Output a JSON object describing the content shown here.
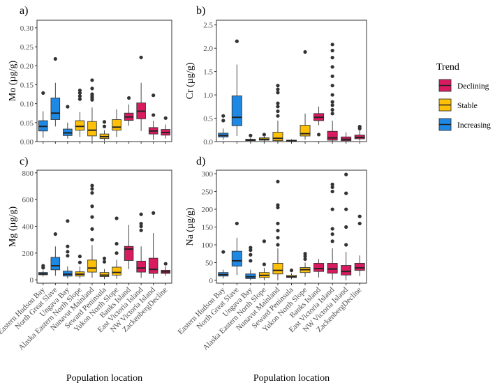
{
  "chart_data": {
    "type": "box",
    "xlabel": "Population location",
    "categories": [
      "Eastern Hudson Bay",
      "North Great Slave",
      "Ungava Bay",
      "Alaska Eastern North Slope",
      "Nunavut Mainland",
      "Seward Peninsula",
      "Yukon North Slope",
      "Banks Island",
      "East Victoria Island",
      "NW Victoria Island",
      "ZackenbergDecline"
    ],
    "trend_of_category": [
      "Increasing",
      "Increasing",
      "Increasing",
      "Stable",
      "Stable",
      "Stable",
      "Stable",
      "Declining",
      "Declining",
      "Declining",
      "Declining"
    ],
    "legend": {
      "title": "Trend",
      "entries": [
        {
          "name": "Declining",
          "color": "#D81B60"
        },
        {
          "name": "Stable",
          "color": "#FFC107"
        },
        {
          "name": "Increasing",
          "color": "#1E88E5"
        }
      ]
    },
    "panels": [
      {
        "label": "a)",
        "ylabel": "Mo (µg/g)",
        "ylim": [
          0,
          0.32
        ],
        "yticks": [
          0.0,
          0.05,
          0.1,
          0.15,
          0.2,
          0.25,
          0.3
        ],
        "ytick_labels": [
          "0.00",
          "0.05",
          "0.10",
          "0.15",
          "0.20",
          "0.25",
          "0.30"
        ],
        "boxes": [
          {
            "q1": 0.028,
            "med": 0.04,
            "q3": 0.055,
            "lo": 0.01,
            "hi": 0.08,
            "out": [
              0.128
            ]
          },
          {
            "q1": 0.058,
            "med": 0.075,
            "q3": 0.115,
            "lo": 0.04,
            "hi": 0.155,
            "out": [
              0.218
            ]
          },
          {
            "q1": 0.016,
            "med": 0.023,
            "q3": 0.033,
            "lo": 0.008,
            "hi": 0.05,
            "out": [
              0.092
            ]
          },
          {
            "q1": 0.03,
            "med": 0.04,
            "q3": 0.055,
            "lo": 0.012,
            "hi": 0.078,
            "out": [
              0.112,
              0.12,
              0.128,
              0.135
            ]
          },
          {
            "q1": 0.015,
            "med": 0.03,
            "q3": 0.053,
            "lo": 0.002,
            "hi": 0.09,
            "out": [
              0.11,
              0.115,
              0.12,
              0.125,
              0.14,
              0.162
            ]
          },
          {
            "q1": 0.008,
            "med": 0.013,
            "q3": 0.02,
            "lo": 0.002,
            "hi": 0.03,
            "out": [
              0.04,
              0.052
            ]
          },
          {
            "q1": 0.03,
            "med": 0.038,
            "q3": 0.058,
            "lo": 0.012,
            "hi": 0.085,
            "out": []
          },
          {
            "q1": 0.056,
            "med": 0.065,
            "q3": 0.075,
            "lo": 0.042,
            "hi": 0.098,
            "out": [
              0.115
            ]
          },
          {
            "q1": 0.06,
            "med": 0.08,
            "q3": 0.102,
            "lo": 0.028,
            "hi": 0.155,
            "out": [
              0.222
            ]
          },
          {
            "q1": 0.02,
            "med": 0.028,
            "q3": 0.037,
            "lo": 0.005,
            "hi": 0.055,
            "out": [
              0.07,
              0.122
            ]
          },
          {
            "q1": 0.017,
            "med": 0.024,
            "q3": 0.032,
            "lo": 0.008,
            "hi": 0.045,
            "out": [
              0.062
            ]
          }
        ]
      },
      {
        "label": "b)",
        "ylabel": "Cr (µg/g)",
        "ylim": [
          0,
          2.6
        ],
        "yticks": [
          0.0,
          0.5,
          1.0,
          1.5,
          2.0,
          2.5
        ],
        "ytick_labels": [
          "0.0",
          "0.5",
          "1.0",
          "1.5",
          "2.0",
          "2.5"
        ],
        "boxes": [
          {
            "q1": 0.1,
            "med": 0.13,
            "q3": 0.18,
            "lo": 0.04,
            "hi": 0.28,
            "out": [
              0.45,
              0.55
            ]
          },
          {
            "q1": 0.34,
            "med": 0.52,
            "q3": 0.98,
            "lo": 0.12,
            "hi": 1.65,
            "out": [
              2.15
            ]
          },
          {
            "q1": 0.02,
            "med": 0.03,
            "q3": 0.05,
            "lo": 0.0,
            "hi": 0.08,
            "out": [
              0.13
            ]
          },
          {
            "q1": 0.03,
            "med": 0.05,
            "q3": 0.08,
            "lo": 0.0,
            "hi": 0.12,
            "out": [
              0.15
            ]
          },
          {
            "q1": 0.02,
            "med": 0.07,
            "q3": 0.2,
            "lo": 0.0,
            "hi": 0.45,
            "out": [
              0.55,
              0.65,
              0.75,
              0.82,
              1.05,
              1.12,
              1.2
            ]
          },
          {
            "q1": 0.01,
            "med": 0.02,
            "q3": 0.03,
            "lo": 0.0,
            "hi": 0.05,
            "out": []
          },
          {
            "q1": 0.12,
            "med": 0.17,
            "q3": 0.35,
            "lo": 0.04,
            "hi": 0.6,
            "out": [
              1.92
            ]
          },
          {
            "q1": 0.45,
            "med": 0.52,
            "q3": 0.6,
            "lo": 0.35,
            "hi": 0.75,
            "out": [
              0.15
            ]
          },
          {
            "q1": 0.03,
            "med": 0.08,
            "q3": 0.22,
            "lo": 0.0,
            "hi": 0.45,
            "out": [
              0.6,
              0.68,
              0.78,
              0.85,
              1.0,
              1.2,
              1.4,
              1.6,
              1.8,
              1.95,
              2.08
            ]
          },
          {
            "q1": 0.02,
            "med": 0.05,
            "q3": 0.1,
            "lo": 0.0,
            "hi": 0.2,
            "out": []
          },
          {
            "q1": 0.06,
            "med": 0.09,
            "q3": 0.14,
            "lo": 0.02,
            "hi": 0.25,
            "out": [
              0.28,
              0.32
            ]
          }
        ]
      },
      {
        "label": "c)",
        "ylabel": "Mg (µg/g)",
        "ylim": [
          -25,
          820
        ],
        "yticks": [
          0,
          200,
          400,
          600,
          800
        ],
        "ytick_labels": [
          "0",
          "200",
          "400",
          "600",
          "800"
        ],
        "boxes": [
          {
            "q1": 38,
            "med": 45,
            "q3": 55,
            "lo": 25,
            "hi": 70,
            "out": [
              90,
              105
            ]
          },
          {
            "q1": 75,
            "med": 105,
            "q3": 168,
            "lo": 30,
            "hi": 250,
            "out": [
              342
            ]
          },
          {
            "q1": 28,
            "med": 42,
            "q3": 65,
            "lo": 10,
            "hi": 100,
            "out": [
              180,
              210,
              250,
              440
            ]
          },
          {
            "q1": 28,
            "med": 42,
            "q3": 60,
            "lo": 10,
            "hi": 100,
            "out": [
              130,
              175
            ]
          },
          {
            "q1": 58,
            "med": 88,
            "q3": 148,
            "lo": 15,
            "hi": 260,
            "out": [
              300,
              380,
              470,
              550,
              650,
              680,
              705
            ]
          },
          {
            "q1": 25,
            "med": 35,
            "q3": 55,
            "lo": 5,
            "hi": 80,
            "out": [
              135,
              160
            ]
          },
          {
            "q1": 35,
            "med": 55,
            "q3": 95,
            "lo": 8,
            "hi": 150,
            "out": [
              200,
              270,
              460
            ]
          },
          {
            "q1": 145,
            "med": 230,
            "q3": 250,
            "lo": 80,
            "hi": 410,
            "out": []
          },
          {
            "q1": 58,
            "med": 88,
            "q3": 140,
            "lo": 15,
            "hi": 250,
            "out": [
              370,
              400,
              420,
              490
            ]
          },
          {
            "q1": 48,
            "med": 78,
            "q3": 162,
            "lo": 10,
            "hi": 350,
            "out": [
              500
            ]
          },
          {
            "q1": 48,
            "med": 60,
            "q3": 72,
            "lo": 30,
            "hi": 100,
            "out": [
              120
            ]
          }
        ]
      },
      {
        "label": "d)",
        "ylabel": "Na (µg/g)",
        "ylim": [
          -8,
          310
        ],
        "yticks": [
          0,
          50,
          100,
          150,
          200,
          250,
          300
        ],
        "ytick_labels": [
          "0",
          "50",
          "100",
          "150",
          "200",
          "250",
          "300"
        ],
        "boxes": [
          {
            "q1": 12,
            "med": 16,
            "q3": 22,
            "lo": 5,
            "hi": 30,
            "out": [
              80
            ]
          },
          {
            "q1": 40,
            "med": 55,
            "q3": 82,
            "lo": 15,
            "hi": 120,
            "out": [
              160
            ]
          },
          {
            "q1": 5,
            "med": 10,
            "q3": 18,
            "lo": 0,
            "hi": 30,
            "out": [
              55,
              72,
              85,
              92
            ]
          },
          {
            "q1": 8,
            "med": 14,
            "q3": 22,
            "lo": 0,
            "hi": 35,
            "out": [
              45,
              110
            ]
          },
          {
            "q1": 18,
            "med": 28,
            "q3": 48,
            "lo": 0,
            "hi": 90,
            "out": [
              100,
              120,
              140,
              160,
              205,
              212,
              278
            ]
          },
          {
            "q1": 8,
            "med": 10,
            "q3": 14,
            "lo": 3,
            "hi": 20,
            "out": [
              28
            ]
          },
          {
            "q1": 22,
            "med": 30,
            "q3": 36,
            "lo": 10,
            "hi": 50,
            "out": [
              60,
              68,
              75
            ]
          },
          {
            "q1": 25,
            "med": 33,
            "q3": 48,
            "lo": 8,
            "hi": 60,
            "out": []
          },
          {
            "q1": 20,
            "med": 32,
            "q3": 48,
            "lo": 2,
            "hi": 90,
            "out": [
              110,
              130,
              145,
              200,
              250,
              262,
              270
            ]
          },
          {
            "q1": 15,
            "med": 25,
            "q3": 42,
            "lo": 0,
            "hi": 80,
            "out": [
              100,
              150,
              200,
              245,
              298
            ]
          },
          {
            "q1": 28,
            "med": 35,
            "q3": 48,
            "lo": 12,
            "hi": 70,
            "out": [
              160,
              180
            ]
          }
        ]
      }
    ]
  }
}
